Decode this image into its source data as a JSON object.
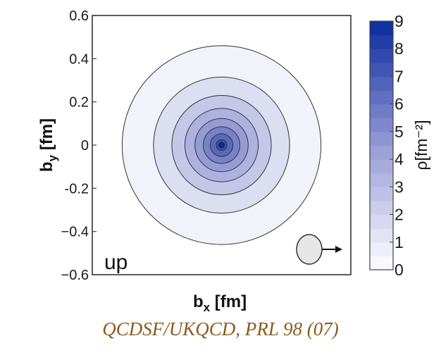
{
  "chart_data": {
    "type": "contour",
    "xlabel": {
      "main": "b",
      "sub": "x",
      "unit": " [fm]"
    },
    "ylabel": {
      "main": "b",
      "sub": "y",
      "unit": " [fm]"
    },
    "xlim": [
      -0.6,
      0.6
    ],
    "ylim": [
      -0.6,
      0.6
    ],
    "y_ticks": [
      {
        "value": 0.6,
        "label": "0.6"
      },
      {
        "value": 0.4,
        "label": "0.4"
      },
      {
        "value": 0.2,
        "label": "0.2"
      },
      {
        "value": 0,
        "label": "0"
      },
      {
        "value": -0.2,
        "label": "-0.2"
      },
      {
        "value": -0.4,
        "label": "−0.4"
      },
      {
        "value": -0.6,
        "label": "−0.6"
      }
    ],
    "panel_label": "up",
    "density_peak": {
      "bx": 0.0,
      "by": 0.0,
      "value": 9
    },
    "contour_levels": [
      1,
      2,
      3,
      4,
      5,
      6,
      7,
      8,
      9
    ],
    "colorbar": {
      "min": 0,
      "max": 9,
      "tick_labels": [
        "0",
        "1",
        "2",
        "3",
        "4",
        "5",
        "6",
        "7",
        "8",
        "9"
      ],
      "title": "ρ[fm⁻²]",
      "color_low": "#ffffff",
      "color_high": "#0a2a9e"
    },
    "inset_icon": "polarized-nucleon-spin-arrow-icon",
    "caption": "QCDSF/UKQCD, PRL 98 (07)"
  }
}
